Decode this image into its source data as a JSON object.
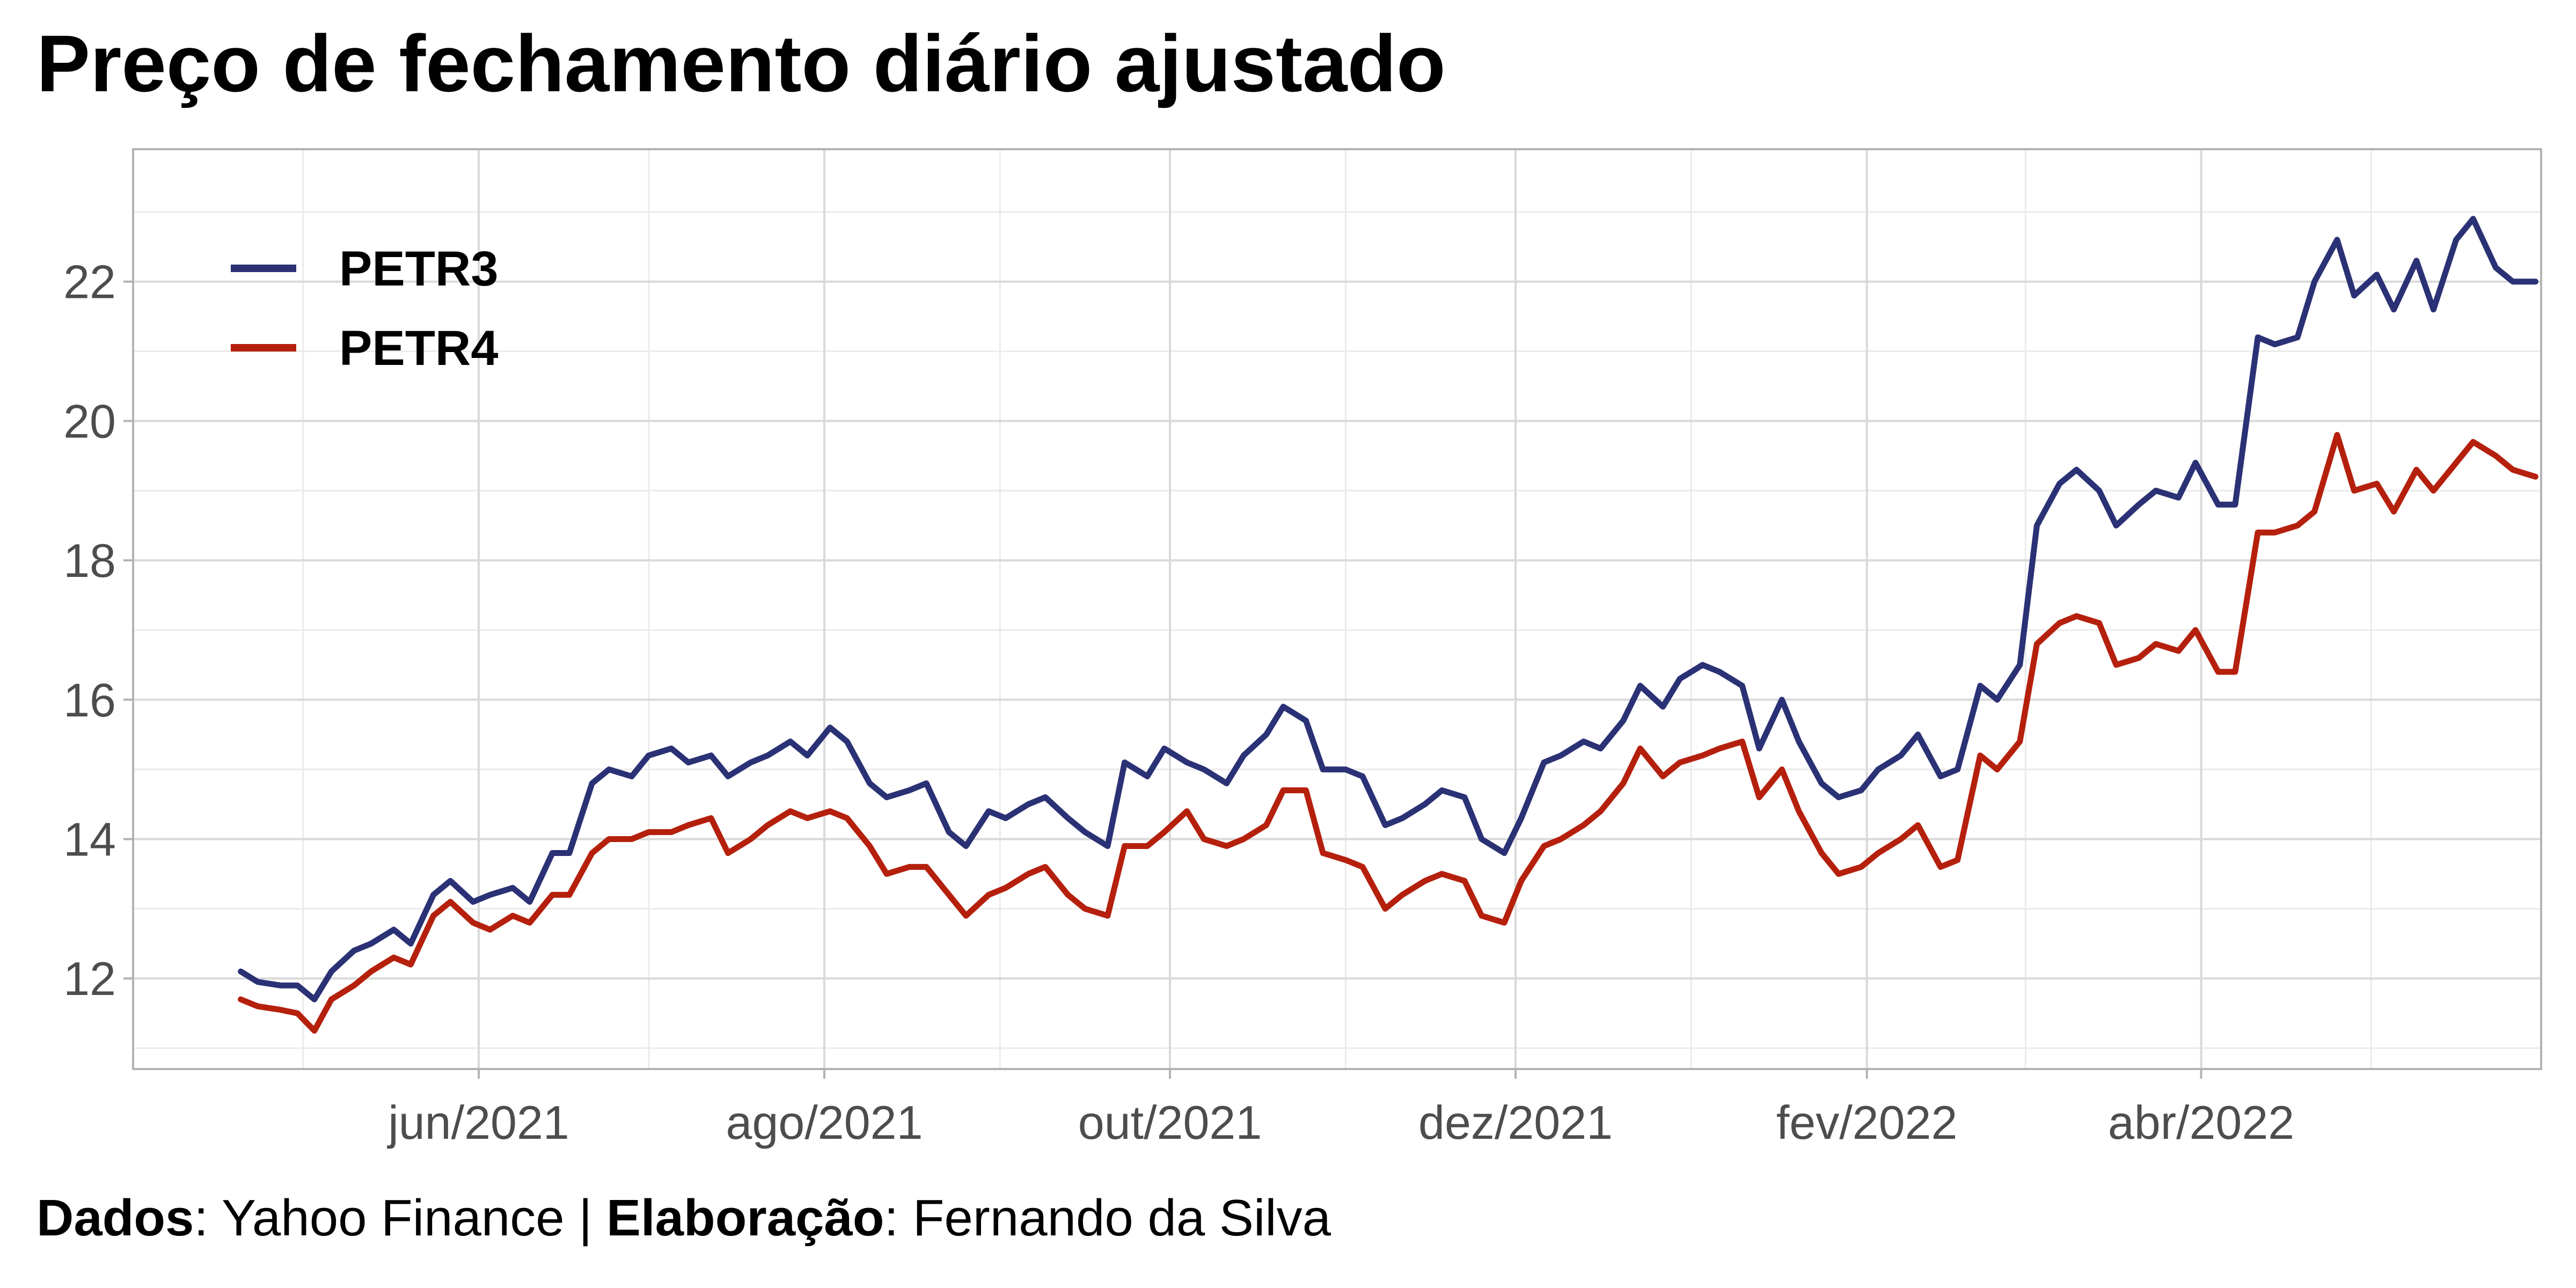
{
  "chart_data": {
    "type": "line",
    "title": "Preço de fechamento diário ajustado",
    "xlabel": "",
    "ylabel": "",
    "x_range": [
      "2021-04-01",
      "2022-05-31"
    ],
    "ylim": [
      10.7,
      23.9
    ],
    "y_ticks": [
      12,
      14,
      16,
      18,
      20,
      22
    ],
    "x_ticks": [
      {
        "date": "2021-06-01",
        "label": "jun/2021"
      },
      {
        "date": "2021-08-01",
        "label": "ago/2021"
      },
      {
        "date": "2021-10-01",
        "label": "out/2021"
      },
      {
        "date": "2021-12-01",
        "label": "dez/2021"
      },
      {
        "date": "2022-02-01",
        "label": "fev/2022"
      },
      {
        "date": "2022-04-01",
        "label": "abr/2022"
      }
    ],
    "grid": true,
    "legend_position": "top-left",
    "series": [
      {
        "name": "PETR3",
        "color": "#2b3175",
        "points": [
          [
            "2021-04-20",
            12.1
          ],
          [
            "2021-04-23",
            11.95
          ],
          [
            "2021-04-27",
            11.9
          ],
          [
            "2021-04-30",
            11.9
          ],
          [
            "2021-05-03",
            11.7
          ],
          [
            "2021-05-06",
            12.1
          ],
          [
            "2021-05-10",
            12.4
          ],
          [
            "2021-05-13",
            12.5
          ],
          [
            "2021-05-17",
            12.7
          ],
          [
            "2021-05-20",
            12.5
          ],
          [
            "2021-05-24",
            13.2
          ],
          [
            "2021-05-27",
            13.4
          ],
          [
            "2021-05-31",
            13.1
          ],
          [
            "2021-06-03",
            13.2
          ],
          [
            "2021-06-07",
            13.3
          ],
          [
            "2021-06-10",
            13.1
          ],
          [
            "2021-06-14",
            13.8
          ],
          [
            "2021-06-17",
            13.8
          ],
          [
            "2021-06-21",
            14.8
          ],
          [
            "2021-06-24",
            15.0
          ],
          [
            "2021-06-28",
            14.9
          ],
          [
            "2021-07-01",
            15.2
          ],
          [
            "2021-07-05",
            15.3
          ],
          [
            "2021-07-08",
            15.1
          ],
          [
            "2021-07-12",
            15.2
          ],
          [
            "2021-07-15",
            14.9
          ],
          [
            "2021-07-19",
            15.1
          ],
          [
            "2021-07-22",
            15.2
          ],
          [
            "2021-07-26",
            15.4
          ],
          [
            "2021-07-29",
            15.2
          ],
          [
            "2021-08-02",
            15.6
          ],
          [
            "2021-08-05",
            15.4
          ],
          [
            "2021-08-09",
            14.8
          ],
          [
            "2021-08-12",
            14.6
          ],
          [
            "2021-08-16",
            14.7
          ],
          [
            "2021-08-19",
            14.8
          ],
          [
            "2021-08-23",
            14.1
          ],
          [
            "2021-08-26",
            13.9
          ],
          [
            "2021-08-30",
            14.4
          ],
          [
            "2021-09-02",
            14.3
          ],
          [
            "2021-09-06",
            14.5
          ],
          [
            "2021-09-09",
            14.6
          ],
          [
            "2021-09-13",
            14.3
          ],
          [
            "2021-09-16",
            14.1
          ],
          [
            "2021-09-20",
            13.9
          ],
          [
            "2021-09-23",
            15.1
          ],
          [
            "2021-09-27",
            14.9
          ],
          [
            "2021-09-30",
            15.3
          ],
          [
            "2021-10-04",
            15.1
          ],
          [
            "2021-10-07",
            15.0
          ],
          [
            "2021-10-11",
            14.8
          ],
          [
            "2021-10-14",
            15.2
          ],
          [
            "2021-10-18",
            15.5
          ],
          [
            "2021-10-21",
            15.9
          ],
          [
            "2021-10-25",
            15.7
          ],
          [
            "2021-10-28",
            15.0
          ],
          [
            "2021-11-01",
            15.0
          ],
          [
            "2021-11-04",
            14.9
          ],
          [
            "2021-11-08",
            14.2
          ],
          [
            "2021-11-11",
            14.3
          ],
          [
            "2021-11-15",
            14.5
          ],
          [
            "2021-11-18",
            14.7
          ],
          [
            "2021-11-22",
            14.6
          ],
          [
            "2021-11-25",
            14.0
          ],
          [
            "2021-11-29",
            13.8
          ],
          [
            "2021-12-02",
            14.3
          ],
          [
            "2021-12-06",
            15.1
          ],
          [
            "2021-12-09",
            15.2
          ],
          [
            "2021-12-13",
            15.4
          ],
          [
            "2021-12-16",
            15.3
          ],
          [
            "2021-12-20",
            15.7
          ],
          [
            "2021-12-23",
            16.2
          ],
          [
            "2021-12-27",
            15.9
          ],
          [
            "2021-12-30",
            16.3
          ],
          [
            "2022-01-03",
            16.5
          ],
          [
            "2022-01-06",
            16.4
          ],
          [
            "2022-01-10",
            16.2
          ],
          [
            "2022-01-13",
            15.3
          ],
          [
            "2022-01-17",
            16.0
          ],
          [
            "2022-01-20",
            15.4
          ],
          [
            "2022-01-24",
            14.8
          ],
          [
            "2022-01-27",
            14.6
          ],
          [
            "2022-01-31",
            14.7
          ],
          [
            "2022-02-03",
            15.0
          ],
          [
            "2022-02-07",
            15.2
          ],
          [
            "2022-02-10",
            15.5
          ],
          [
            "2022-02-14",
            14.9
          ],
          [
            "2022-02-17",
            15.0
          ],
          [
            "2022-02-21",
            16.2
          ],
          [
            "2022-02-24",
            16.0
          ],
          [
            "2022-02-28",
            16.5
          ],
          [
            "2022-03-03",
            18.5
          ],
          [
            "2022-03-07",
            19.1
          ],
          [
            "2022-03-10",
            19.3
          ],
          [
            "2022-03-14",
            19.0
          ],
          [
            "2022-03-17",
            18.5
          ],
          [
            "2022-03-21",
            18.8
          ],
          [
            "2022-03-24",
            19.0
          ],
          [
            "2022-03-28",
            18.9
          ],
          [
            "2022-03-31",
            19.4
          ],
          [
            "2022-04-04",
            18.8
          ],
          [
            "2022-04-07",
            18.8
          ],
          [
            "2022-04-11",
            21.2
          ],
          [
            "2022-04-14",
            21.1
          ],
          [
            "2022-04-18",
            21.2
          ],
          [
            "2022-04-21",
            22.0
          ],
          [
            "2022-04-25",
            22.6
          ],
          [
            "2022-04-28",
            21.8
          ],
          [
            "2022-05-02",
            22.1
          ],
          [
            "2022-05-05",
            21.6
          ],
          [
            "2022-05-09",
            22.3
          ],
          [
            "2022-05-12",
            21.6
          ],
          [
            "2022-05-16",
            22.6
          ],
          [
            "2022-05-19",
            22.9
          ],
          [
            "2022-05-23",
            22.2
          ],
          [
            "2022-05-26",
            22.0
          ],
          [
            "2022-05-30",
            22.0
          ]
        ]
      },
      {
        "name": "PETR4",
        "color": "#b5200d",
        "points": [
          [
            "2021-04-20",
            11.7
          ],
          [
            "2021-04-23",
            11.6
          ],
          [
            "2021-04-27",
            11.55
          ],
          [
            "2021-04-30",
            11.5
          ],
          [
            "2021-05-03",
            11.25
          ],
          [
            "2021-05-06",
            11.7
          ],
          [
            "2021-05-10",
            11.9
          ],
          [
            "2021-05-13",
            12.1
          ],
          [
            "2021-05-17",
            12.3
          ],
          [
            "2021-05-20",
            12.2
          ],
          [
            "2021-05-24",
            12.9
          ],
          [
            "2021-05-27",
            13.1
          ],
          [
            "2021-05-31",
            12.8
          ],
          [
            "2021-06-03",
            12.7
          ],
          [
            "2021-06-07",
            12.9
          ],
          [
            "2021-06-10",
            12.8
          ],
          [
            "2021-06-14",
            13.2
          ],
          [
            "2021-06-17",
            13.2
          ],
          [
            "2021-06-21",
            13.8
          ],
          [
            "2021-06-24",
            14.0
          ],
          [
            "2021-06-28",
            14.0
          ],
          [
            "2021-07-01",
            14.1
          ],
          [
            "2021-07-05",
            14.1
          ],
          [
            "2021-07-08",
            14.2
          ],
          [
            "2021-07-12",
            14.3
          ],
          [
            "2021-07-15",
            13.8
          ],
          [
            "2021-07-19",
            14.0
          ],
          [
            "2021-07-22",
            14.2
          ],
          [
            "2021-07-26",
            14.4
          ],
          [
            "2021-07-29",
            14.3
          ],
          [
            "2021-08-02",
            14.4
          ],
          [
            "2021-08-05",
            14.3
          ],
          [
            "2021-08-09",
            13.9
          ],
          [
            "2021-08-12",
            13.5
          ],
          [
            "2021-08-16",
            13.6
          ],
          [
            "2021-08-19",
            13.6
          ],
          [
            "2021-08-23",
            13.2
          ],
          [
            "2021-08-26",
            12.9
          ],
          [
            "2021-08-30",
            13.2
          ],
          [
            "2021-09-02",
            13.3
          ],
          [
            "2021-09-06",
            13.5
          ],
          [
            "2021-09-09",
            13.6
          ],
          [
            "2021-09-13",
            13.2
          ],
          [
            "2021-09-16",
            13.0
          ],
          [
            "2021-09-20",
            12.9
          ],
          [
            "2021-09-23",
            13.9
          ],
          [
            "2021-09-27",
            13.9
          ],
          [
            "2021-09-30",
            14.1
          ],
          [
            "2021-10-04",
            14.4
          ],
          [
            "2021-10-07",
            14.0
          ],
          [
            "2021-10-11",
            13.9
          ],
          [
            "2021-10-14",
            14.0
          ],
          [
            "2021-10-18",
            14.2
          ],
          [
            "2021-10-21",
            14.7
          ],
          [
            "2021-10-25",
            14.7
          ],
          [
            "2021-10-28",
            13.8
          ],
          [
            "2021-11-01",
            13.7
          ],
          [
            "2021-11-04",
            13.6
          ],
          [
            "2021-11-08",
            13.0
          ],
          [
            "2021-11-11",
            13.2
          ],
          [
            "2021-11-15",
            13.4
          ],
          [
            "2021-11-18",
            13.5
          ],
          [
            "2021-11-22",
            13.4
          ],
          [
            "2021-11-25",
            12.9
          ],
          [
            "2021-11-29",
            12.8
          ],
          [
            "2021-12-02",
            13.4
          ],
          [
            "2021-12-06",
            13.9
          ],
          [
            "2021-12-09",
            14.0
          ],
          [
            "2021-12-13",
            14.2
          ],
          [
            "2021-12-16",
            14.4
          ],
          [
            "2021-12-20",
            14.8
          ],
          [
            "2021-12-23",
            15.3
          ],
          [
            "2021-12-27",
            14.9
          ],
          [
            "2021-12-30",
            15.1
          ],
          [
            "2022-01-03",
            15.2
          ],
          [
            "2022-01-06",
            15.3
          ],
          [
            "2022-01-10",
            15.4
          ],
          [
            "2022-01-13",
            14.6
          ],
          [
            "2022-01-17",
            15.0
          ],
          [
            "2022-01-20",
            14.4
          ],
          [
            "2022-01-24",
            13.8
          ],
          [
            "2022-01-27",
            13.5
          ],
          [
            "2022-01-31",
            13.6
          ],
          [
            "2022-02-03",
            13.8
          ],
          [
            "2022-02-07",
            14.0
          ],
          [
            "2022-02-10",
            14.2
          ],
          [
            "2022-02-14",
            13.6
          ],
          [
            "2022-02-17",
            13.7
          ],
          [
            "2022-02-21",
            15.2
          ],
          [
            "2022-02-24",
            15.0
          ],
          [
            "2022-02-28",
            15.4
          ],
          [
            "2022-03-03",
            16.8
          ],
          [
            "2022-03-07",
            17.1
          ],
          [
            "2022-03-10",
            17.2
          ],
          [
            "2022-03-14",
            17.1
          ],
          [
            "2022-03-17",
            16.5
          ],
          [
            "2022-03-21",
            16.6
          ],
          [
            "2022-03-24",
            16.8
          ],
          [
            "2022-03-28",
            16.7
          ],
          [
            "2022-03-31",
            17.0
          ],
          [
            "2022-04-04",
            16.4
          ],
          [
            "2022-04-07",
            16.4
          ],
          [
            "2022-04-11",
            18.4
          ],
          [
            "2022-04-14",
            18.4
          ],
          [
            "2022-04-18",
            18.5
          ],
          [
            "2022-04-21",
            18.7
          ],
          [
            "2022-04-25",
            19.8
          ],
          [
            "2022-04-28",
            19.0
          ],
          [
            "2022-05-02",
            19.1
          ],
          [
            "2022-05-05",
            18.7
          ],
          [
            "2022-05-09",
            19.3
          ],
          [
            "2022-05-12",
            19.0
          ],
          [
            "2022-05-16",
            19.4
          ],
          [
            "2022-05-19",
            19.7
          ],
          [
            "2022-05-23",
            19.5
          ],
          [
            "2022-05-26",
            19.3
          ],
          [
            "2022-05-30",
            19.2
          ]
        ]
      }
    ]
  },
  "caption": {
    "source_label": "Dados",
    "source_value": ": Yahoo Finance | ",
    "author_label": "Elaboração",
    "author_value": ": Fernando da Silva"
  }
}
